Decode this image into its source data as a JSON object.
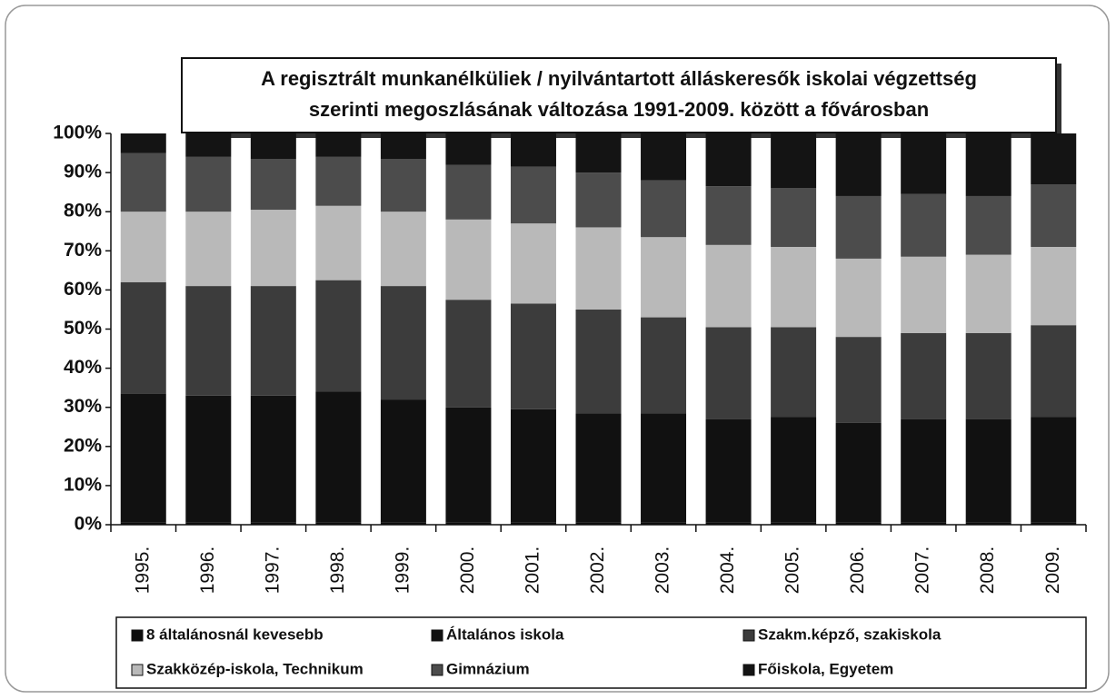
{
  "chart_data": {
    "type": "stacked_bar_100",
    "title": [
      "A regisztrált munkanélküliek / nyilvántartott álláskeresők iskolai végzettség",
      "szerinti megoszlásának változása 1991-2009. között a fővárosban"
    ],
    "categories": [
      "1995.",
      "1996.",
      "1997.",
      "1998.",
      "1999.",
      "2000.",
      "2001.",
      "2002.",
      "2003.",
      "2004.",
      "2005.",
      "2006.",
      "2007.",
      "2008.",
      "2009."
    ],
    "series": [
      {
        "name": "8 általánosnál kevesebb",
        "color": "#0d0d0d",
        "values": [
          0.5,
          0.5,
          0.5,
          0.5,
          0.5,
          0.5,
          0.5,
          0.5,
          0.5,
          0.5,
          0.5,
          0.5,
          0.5,
          0.5,
          0.5
        ]
      },
      {
        "name": "Általános iskola",
        "color": "#111111",
        "values": [
          33,
          32.5,
          32.5,
          33.5,
          31.5,
          29.5,
          29,
          28,
          28,
          26.5,
          27,
          25.5,
          26.5,
          26.5,
          27
        ]
      },
      {
        "name": "Szakm.képző, szakiskola",
        "color": "#3c3c3c",
        "values": [
          28.5,
          28,
          28,
          28.5,
          29,
          27.5,
          27,
          26.5,
          24.5,
          23.5,
          23,
          22,
          22,
          22,
          23.5
        ]
      },
      {
        "name": "Szakközép-iskola, Technikum",
        "color": "#b9b9b9",
        "values": [
          18,
          19,
          19.5,
          19,
          19,
          20.5,
          20.5,
          21,
          20.5,
          21,
          20.5,
          20,
          19.5,
          20,
          20
        ]
      },
      {
        "name": "Gimnázium",
        "color": "#4c4c4c",
        "values": [
          15,
          14,
          13,
          12.5,
          13.5,
          14,
          14.5,
          14,
          14.5,
          15,
          15,
          16,
          16,
          15,
          16
        ]
      },
      {
        "name": "Főiskola, Egyetem",
        "color": "#141414",
        "values": [
          5,
          6,
          6.5,
          6,
          6.5,
          8,
          8.5,
          10,
          12,
          13.5,
          14,
          16,
          15.5,
          16,
          13
        ]
      }
    ],
    "ylim": [
      0,
      100
    ],
    "yticks": [
      {
        "value": 0,
        "label": "0%"
      },
      {
        "value": 10,
        "label": "10%"
      },
      {
        "value": 20,
        "label": "20%"
      },
      {
        "value": 30,
        "label": "30%"
      },
      {
        "value": 40,
        "label": "40%"
      },
      {
        "value": 50,
        "label": "50%"
      },
      {
        "value": 60,
        "label": "60%"
      },
      {
        "value": 70,
        "label": "70%"
      },
      {
        "value": 80,
        "label": "80%"
      },
      {
        "value": 90,
        "label": "90%"
      },
      {
        "value": 100,
        "label": "100%"
      }
    ],
    "legend": "bottom"
  }
}
